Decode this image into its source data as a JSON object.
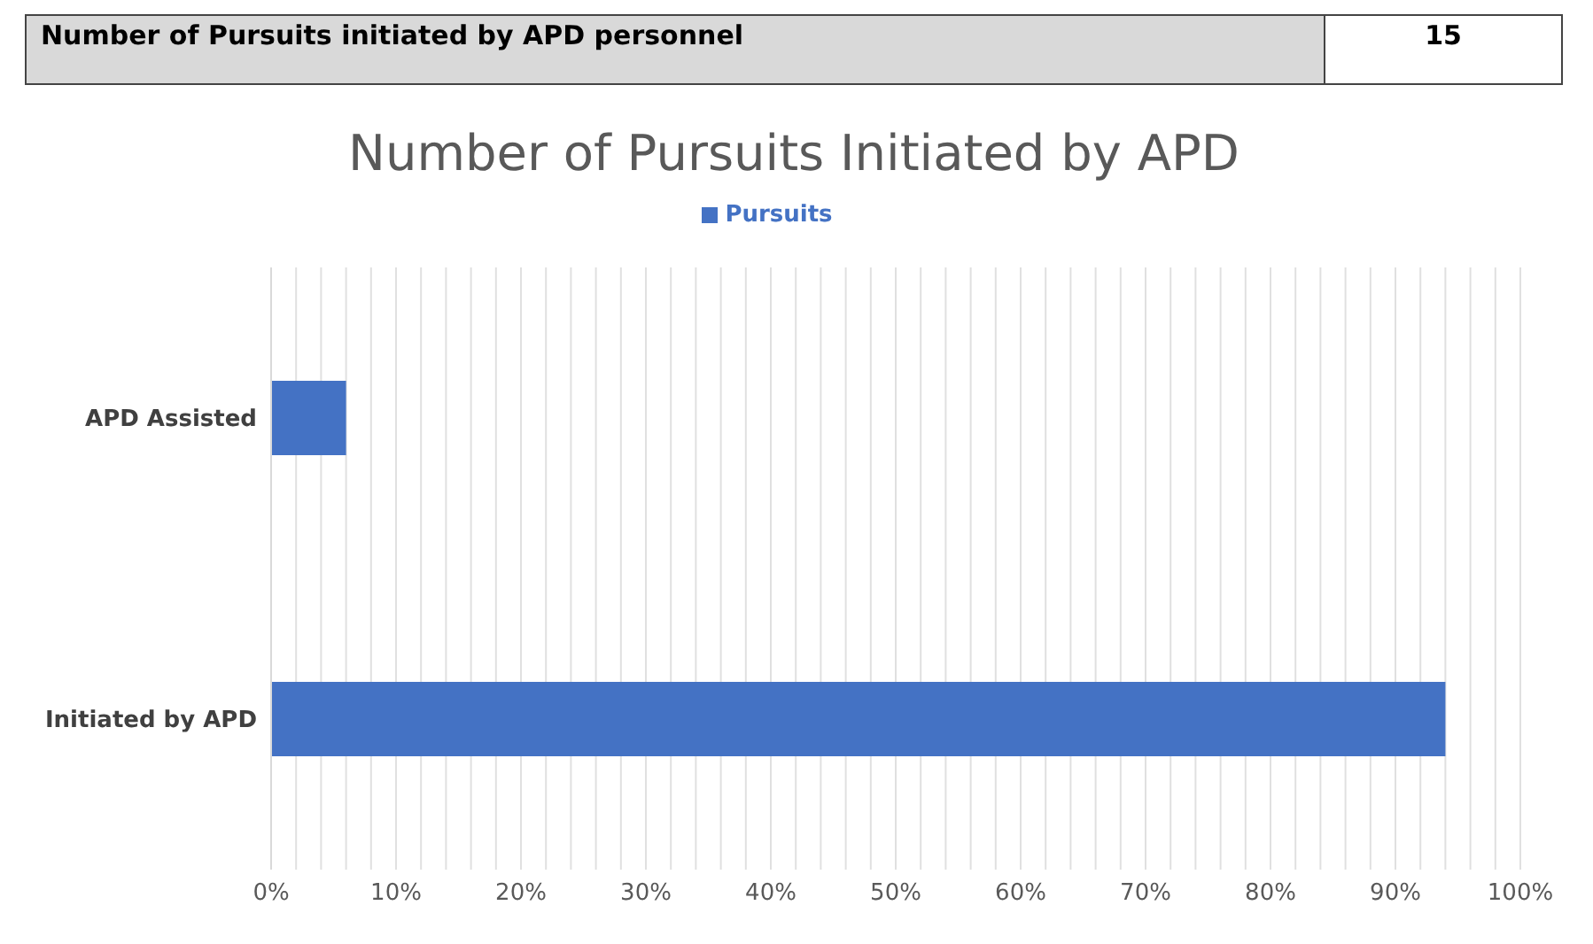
{
  "chart_data": {
    "type": "bar",
    "orientation": "horizontal",
    "title": "Number of Pursuits Initiated by APD",
    "annotations": [
      "Number of Pursuits initiated by APD personnel",
      "15"
    ],
    "categories": [
      "APD Assisted",
      "Initiated by APD"
    ],
    "series": [
      {
        "name": "Pursuits",
        "color": "#4472c4",
        "values": [
          6,
          94
        ]
      }
    ],
    "xlim": [
      0,
      100
    ],
    "xticks": [
      {
        "value": 0,
        "label": "0%"
      },
      {
        "value": 2,
        "label": null
      },
      {
        "value": 4,
        "label": null
      },
      {
        "value": 6,
        "label": null
      },
      {
        "value": 8,
        "label": null
      },
      {
        "value": 10,
        "label": "10%"
      },
      {
        "value": 12,
        "label": null
      },
      {
        "value": 14,
        "label": null
      },
      {
        "value": 16,
        "label": null
      },
      {
        "value": 18,
        "label": null
      },
      {
        "value": 20,
        "label": "20%"
      },
      {
        "value": 22,
        "label": null
      },
      {
        "value": 24,
        "label": null
      },
      {
        "value": 26,
        "label": null
      },
      {
        "value": 28,
        "label": null
      },
      {
        "value": 30,
        "label": "30%"
      },
      {
        "value": 32,
        "label": null
      },
      {
        "value": 34,
        "label": null
      },
      {
        "value": 36,
        "label": null
      },
      {
        "value": 38,
        "label": null
      },
      {
        "value": 40,
        "label": "40%"
      },
      {
        "value": 42,
        "label": null
      },
      {
        "value": 44,
        "label": null
      },
      {
        "value": 46,
        "label": null
      },
      {
        "value": 48,
        "label": null
      },
      {
        "value": 50,
        "label": "50%"
      },
      {
        "value": 52,
        "label": null
      },
      {
        "value": 54,
        "label": null
      },
      {
        "value": 56,
        "label": null
      },
      {
        "value": 58,
        "label": null
      },
      {
        "value": 60,
        "label": "60%"
      },
      {
        "value": 62,
        "label": null
      },
      {
        "value": 64,
        "label": null
      },
      {
        "value": 66,
        "label": null
      },
      {
        "value": 68,
        "label": null
      },
      {
        "value": 70,
        "label": "70%"
      },
      {
        "value": 72,
        "label": null
      },
      {
        "value": 74,
        "label": null
      },
      {
        "value": 76,
        "label": null
      },
      {
        "value": 78,
        "label": null
      },
      {
        "value": 80,
        "label": "80%"
      },
      {
        "value": 82,
        "label": null
      },
      {
        "value": 84,
        "label": null
      },
      {
        "value": 86,
        "label": null
      },
      {
        "value": 88,
        "label": null
      },
      {
        "value": 90,
        "label": "90%"
      },
      {
        "value": 92,
        "label": null
      },
      {
        "value": 94,
        "label": null
      },
      {
        "value": 96,
        "label": null
      },
      {
        "value": 98,
        "label": null
      },
      {
        "value": 100,
        "label": "100%"
      }
    ],
    "grid": "x",
    "legend": "top"
  }
}
